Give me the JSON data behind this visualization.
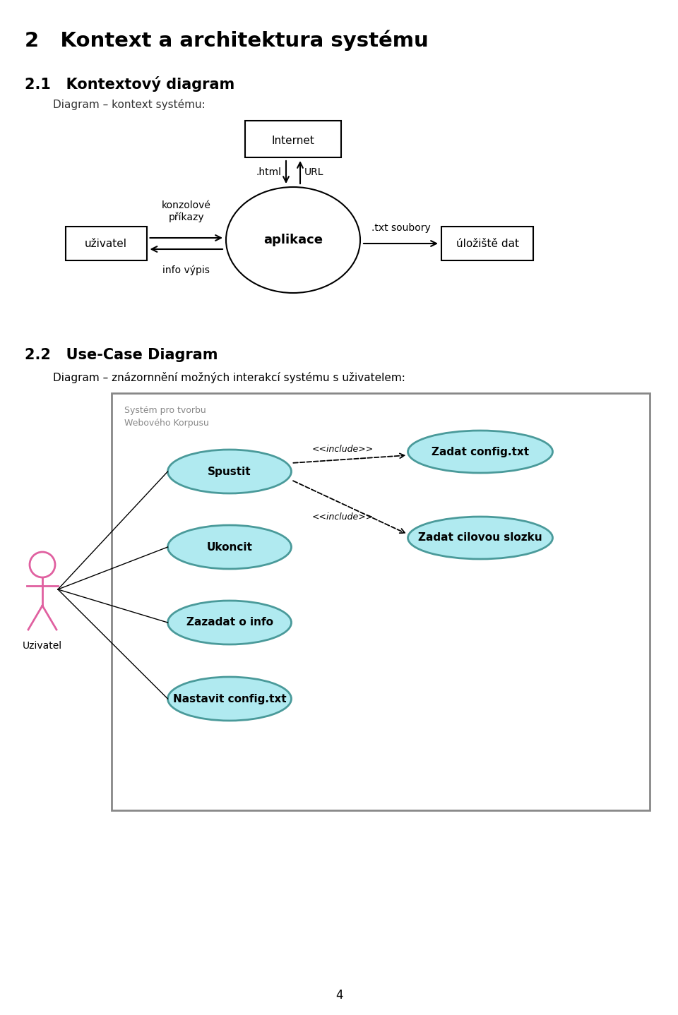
{
  "title1": "2   Kontext a architektura systému",
  "title2": "2.1   Kontextový diagram",
  "subtitle1": "Diagram – kontext systému:",
  "title3": "2.2   Use-Case Diagram",
  "subtitle2": "Diagram – znázornnění možných interakcí systému s uživatelem:",
  "page_num": "4",
  "bg_color": "#ffffff",
  "diagram1": {
    "internet_label": "Internet",
    "aplikace_label": "aplikace",
    "uzivatel_label": "uživatel",
    "uloziste_label": "úložiště dat",
    "html_label": ".html",
    "url_label": "URL",
    "konzolove_label": "konzolové\npříkazy",
    "txt_label": ".txt soubory",
    "info_label": "info výpis"
  },
  "diagram2": {
    "system_label_line1": "Systém pro tvorbu",
    "system_label_line2": "Webového Korpusu",
    "uzivatel_label": "Uzivatel",
    "use_cases": [
      "Spustit",
      "Ukoncit",
      "Zazadat o info",
      "Nastavit config.txt"
    ],
    "right_cases": [
      "Zadat config.txt",
      "Zadat cilovou slozku"
    ],
    "include1": "<<include>>",
    "include2": "<<include>>",
    "ellipse_fill": "#b0eaf0",
    "ellipse_outline": "#4a9a9a",
    "stick_color": "#e060a0",
    "box_border": "#999999",
    "box_bg": "#ffffff"
  }
}
